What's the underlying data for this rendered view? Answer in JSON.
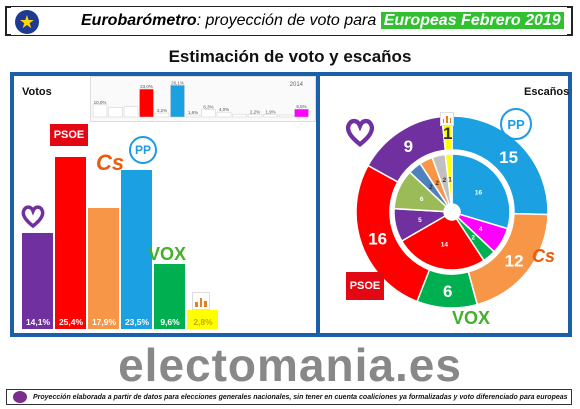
{
  "header": {
    "brand_part": "Eurobarómetro",
    "middle_part": ": proyección de voto para ",
    "highlight_part": "Europeas Febrero 2019"
  },
  "main_title": "Estimación de voto y escaños",
  "left_panel_label": "Votos",
  "right_panel_label": "Escaños",
  "brand": "electomania.es",
  "footer_text": "Proyección elaborada a partir de datos para elecciones generales nacionales, sin tener en cuenta coaliciones ya formalizadas y voto diferenciado para europeas",
  "logos": {
    "psoe": "PSOE",
    "cs": "Cs",
    "pp": "PP",
    "vox": "VOX"
  },
  "colors": {
    "podemos": "#7030a0",
    "psoe": "#ff0000",
    "cs": "#f79646",
    "pp": "#1ba1e2",
    "vox": "#00b050",
    "others": "#ffff00"
  },
  "chart_data": [
    {
      "type": "bar",
      "categories": [
        "Podemos",
        "PSOE",
        "Cs",
        "PP",
        "VOX",
        "Otros"
      ],
      "values": [
        14.1,
        25.4,
        17.9,
        23.5,
        9.6,
        2.8
      ],
      "value_labels": [
        "14,1%",
        "25,4%",
        "17,9%",
        "23,5%",
        "9,6%",
        "2,8%"
      ],
      "ylim": [
        0,
        28
      ]
    },
    {
      "type": "bar",
      "strip_year_label": "2014",
      "categories": [
        "p1",
        "p2",
        "p3",
        "PSOE",
        "p5",
        "PP",
        "VOX",
        "p8",
        "p9",
        "p10",
        "p11",
        "p12",
        "p13",
        "p14"
      ],
      "values": [
        10.0,
        8.0,
        8.5,
        23.0,
        3.2,
        26.1,
        1.6,
        6.3,
        4.0,
        2.3,
        2.2,
        1.9,
        1.5,
        6.5
      ],
      "value_labels": [
        "10,0%",
        "",
        "",
        "23,0%",
        "3,2%",
        "26,1%",
        "1,6%",
        "6,3%",
        "4,0%",
        "",
        "2,2%",
        "1,9%",
        "",
        "6,5%"
      ],
      "colors": [
        "#ffffff",
        "#ffffff",
        "#ffffff",
        "#ff0000",
        "#ffffff",
        "#1ba1e2",
        "#ffffff",
        "#ffffff",
        "#ffffff",
        "#ffffff",
        "#ffffff",
        "#ffffff",
        "#ffffff",
        "#ff00ff"
      ],
      "ylim": [
        0,
        28
      ]
    },
    {
      "type": "pie",
      "ring": "outer",
      "labels": [
        "PP",
        "Cs",
        "VOX",
        "PSOE",
        "Podemos",
        "Otros"
      ],
      "values": [
        15,
        12,
        6,
        16,
        9,
        1
      ],
      "value_labels": [
        "15",
        "12",
        "6",
        "16",
        "9",
        "1"
      ]
    },
    {
      "type": "pie",
      "ring": "inner",
      "labels": [
        "PP",
        "Cs",
        "VOX",
        "PSOE",
        "Podemos",
        "i1",
        "i2",
        "i3",
        "i4",
        "i5"
      ],
      "values": [
        16,
        4,
        2,
        14,
        5,
        6,
        2,
        2,
        2,
        1
      ],
      "value_labels": [
        "16",
        "4",
        "2",
        "14",
        "5",
        "6",
        "2",
        "2",
        "2",
        "1"
      ],
      "colors": [
        "#1ba1e2",
        "#ff00ff",
        "#00b050",
        "#ff0000",
        "#7030a0",
        "#9bbb59",
        "#4f81bd",
        "#f79646",
        "#c0c0c0",
        "#ffff00"
      ]
    }
  ]
}
